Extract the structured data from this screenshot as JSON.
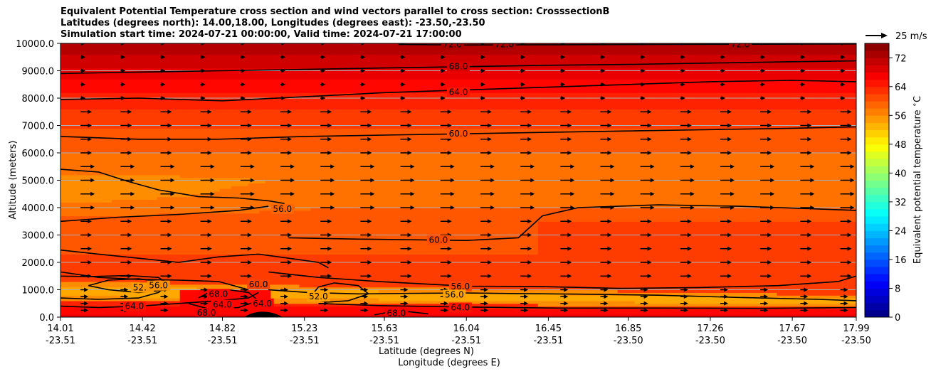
{
  "chart_data": {
    "type": "heatmap",
    "title_lines": [
      "Equivalent Potential Temperature cross section and wind vectors parallel to cross section: CrosssectionB",
      "Latitudes (degrees north): 14.00,18.00, Longitudes (degrees east): -23.50,-23.50",
      "Simulation start time: 2024-07-21 00:00:00, Valid time: 2024-07-21 17:00:00"
    ],
    "ylabel": "Altitude (meters)",
    "xlabel": "Latitude (degrees N)",
    "xlabel2": "Longitude (degrees E)",
    "ylim": [
      0,
      10000
    ],
    "yticks": [
      "0.0",
      "1000.0",
      "2000.0",
      "3000.0",
      "4000.0",
      "5000.0",
      "6000.0",
      "7000.0",
      "8000.0",
      "9000.0",
      "10000.0"
    ],
    "xticks_lat": [
      "14.01",
      "14.42",
      "14.82",
      "15.23",
      "15.63",
      "16.04",
      "16.45",
      "16.85",
      "17.26",
      "17.67",
      "17.99"
    ],
    "xticks_lon": [
      "-23.51",
      "-23.51",
      "-23.51",
      "-23.51",
      "-23.51",
      "-23.51",
      "-23.51",
      "-23.50",
      "-23.50",
      "-23.50",
      "-23.50"
    ],
    "lat_range": [
      14.01,
      17.99
    ],
    "quiver_key": "25 m/s",
    "colorbar": {
      "label": "Equivalent potential temperature $^\\circ$C",
      "min": 0,
      "max": 76,
      "ticks": [
        "0",
        "8",
        "16",
        "24",
        "32",
        "40",
        "48",
        "56",
        "64",
        "72"
      ]
    },
    "contours": [
      {
        "level": 52.0,
        "x": [
          14.15,
          14.25,
          14.4,
          14.55,
          14.5,
          14.4,
          14.25,
          14.15
        ],
        "z": [
          1150,
          1000,
          900,
          1000,
          1300,
          1400,
          1350,
          1150
        ]
      },
      {
        "level": 52.0,
        "x": [
          15.25,
          15.35,
          15.45,
          15.55,
          15.5,
          15.38,
          15.3,
          15.25
        ],
        "z": [
          650,
          550,
          600,
          850,
          1150,
          1250,
          1100,
          650
        ]
      },
      {
        "level": 56.0,
        "x": [
          14.01,
          14.2,
          14.4,
          14.5,
          14.55,
          14.5,
          14.35,
          14.15,
          14.01
        ],
        "z": [
          700,
          650,
          700,
          900,
          1200,
          1450,
          1520,
          1480,
          1500
        ]
      },
      {
        "level": 56.0,
        "x": [
          15.05,
          15.25,
          15.5,
          15.8,
          16.04,
          16.3,
          16.6,
          17.0,
          17.4,
          17.8,
          17.99
        ],
        "z": [
          1000,
          900,
          850,
          870,
          880,
          860,
          840,
          800,
          720,
          650,
          600
        ]
      },
      {
        "level": 56.0,
        "x": [
          15.05,
          15.3,
          15.6,
          16.04,
          16.4,
          16.8,
          17.2,
          17.6,
          17.9,
          17.99
        ],
        "z": [
          1650,
          1450,
          1300,
          1130,
          1120,
          1050,
          1080,
          1150,
          1300,
          1500
        ]
      },
      {
        "level": 56.0,
        "x": [
          14.01,
          14.2,
          14.35,
          14.5,
          14.7,
          14.9,
          15.05,
          15.13
        ],
        "z": [
          5400,
          5300,
          4950,
          4650,
          4400,
          4350,
          4250,
          4150
        ]
      },
      {
        "level": 60.0,
        "x": [
          14.01,
          14.2,
          14.4,
          14.6,
          14.8,
          14.95
        ],
        "z": [
          1650,
          1450,
          1380,
          1350,
          1300,
          1000
        ]
      },
      {
        "level": 60.0,
        "x": [
          14.01,
          14.2,
          14.4,
          14.6,
          14.8,
          15.0,
          15.2,
          15.3,
          15.35
        ],
        "z": [
          2450,
          2300,
          2150,
          2000,
          2200,
          2300,
          2100,
          2000,
          1800
        ]
      },
      {
        "level": 60.0,
        "x": [
          14.01,
          14.3,
          14.6,
          14.9,
          15.05
        ],
        "z": [
          3500,
          3650,
          3750,
          3900,
          4050
        ]
      },
      {
        "level": 60.0,
        "x": [
          15.15,
          15.5,
          16.04,
          16.3,
          16.42,
          16.6,
          17.0,
          17.4,
          17.8,
          17.99
        ],
        "z": [
          2900,
          2850,
          2800,
          2900,
          3700,
          4000,
          4100,
          4050,
          3950,
          3900
        ]
      },
      {
        "level": 60.0,
        "x": [
          14.01,
          14.4,
          14.8,
          15.23,
          15.63,
          16.04,
          16.45,
          16.85,
          17.26,
          17.67,
          17.99
        ],
        "z": [
          6600,
          6500,
          6500,
          6600,
          6650,
          6700,
          6750,
          6800,
          6850,
          6900,
          6950
        ]
      },
      {
        "level": 64.0,
        "x": [
          14.01,
          14.2,
          14.4,
          14.6,
          14.8,
          14.95,
          15.0
        ],
        "z": [
          400,
          350,
          400,
          500,
          600,
          700,
          900
        ]
      },
      {
        "level": 64.0,
        "x": [
          15.3,
          15.6,
          16.04,
          16.5,
          17.0,
          17.5,
          17.99
        ],
        "z": [
          500,
          420,
          370,
          330,
          330,
          320,
          350
        ]
      },
      {
        "level": 64.0,
        "x": [
          14.01,
          14.4,
          14.82,
          15.23,
          15.63,
          16.04,
          16.45,
          16.85,
          17.26,
          17.67,
          17.99
        ],
        "z": [
          7950,
          8000,
          7900,
          8050,
          8200,
          8300,
          8400,
          8500,
          8600,
          8650,
          8600
        ]
      },
      {
        "level": 68.0,
        "x": [
          14.65,
          14.75,
          14.9,
          15.0,
          14.95,
          14.85,
          14.75,
          14.7
        ],
        "z": [
          500,
          300,
          350,
          600,
          900,
          1000,
          900,
          700
        ]
      },
      {
        "level": 68.0,
        "x": [
          15.58,
          15.65,
          15.75,
          15.85
        ],
        "z": [
          80,
          180,
          200,
          120
        ]
      },
      {
        "level": 68.0,
        "x": [
          14.01,
          14.4,
          14.82,
          15.23,
          15.63,
          16.04,
          16.45,
          16.85,
          17.26,
          17.67,
          17.99
        ],
        "z": [
          8900,
          8950,
          9000,
          9050,
          9100,
          9150,
          9200,
          9230,
          9280,
          9330,
          9360
        ]
      },
      {
        "level": 72.0,
        "x": [
          15.7,
          16.0,
          16.5,
          17.0,
          17.5,
          17.99
        ],
        "z": [
          9960,
          9940,
          9950,
          9960,
          9970,
          9980
        ]
      }
    ],
    "contour_labels": [
      {
        "text": "72.0",
        "x": 15.97,
        "z": 9960
      },
      {
        "text": "72.0",
        "x": 16.23,
        "z": 9960
      },
      {
        "text": "72.0",
        "x": 17.41,
        "z": 9960
      },
      {
        "text": "68.0",
        "x": 16.0,
        "z": 9150
      },
      {
        "text": "64.0",
        "x": 16.0,
        "z": 8220
      },
      {
        "text": "60.0",
        "x": 16.0,
        "z": 6700
      },
      {
        "text": "56.0",
        "x": 15.12,
        "z": 3950
      },
      {
        "text": "60.0",
        "x": 15.9,
        "z": 2820
      },
      {
        "text": "56.0",
        "x": 16.01,
        "z": 1120
      },
      {
        "text": "56.0",
        "x": 15.98,
        "z": 820
      },
      {
        "text": "64.0",
        "x": 16.01,
        "z": 350
      },
      {
        "text": "52.0",
        "x": 14.42,
        "z": 1080
      },
      {
        "text": "56.0",
        "x": 14.5,
        "z": 1150
      },
      {
        "text": "64.0",
        "x": 14.38,
        "z": 400
      },
      {
        "text": "68.0",
        "x": 14.8,
        "z": 850
      },
      {
        "text": "64.0",
        "x": 14.82,
        "z": 450
      },
      {
        "text": "68.0",
        "x": 14.74,
        "z": 150
      },
      {
        "text": "60.0",
        "x": 15.0,
        "z": 1200
      },
      {
        "text": "64.0",
        "x": 15.02,
        "z": 500
      },
      {
        "text": "52.0",
        "x": 15.3,
        "z": 750
      },
      {
        "text": "68.0",
        "x": 15.69,
        "z": 140
      }
    ],
    "wind": {
      "x_spacing_deg": 0.2,
      "levels_m": [
        250,
        500,
        750,
        1000,
        1500,
        2000,
        2500,
        3000,
        3500,
        4000,
        4500,
        5000,
        5500,
        6000,
        6500,
        7000,
        7500,
        8000,
        8500,
        9000,
        9500,
        10000
      ]
    },
    "colors": {
      "axis": "#000000",
      "contour": "#000000",
      "grid": "#b0b0b0",
      "terrain": "#000000"
    }
  }
}
